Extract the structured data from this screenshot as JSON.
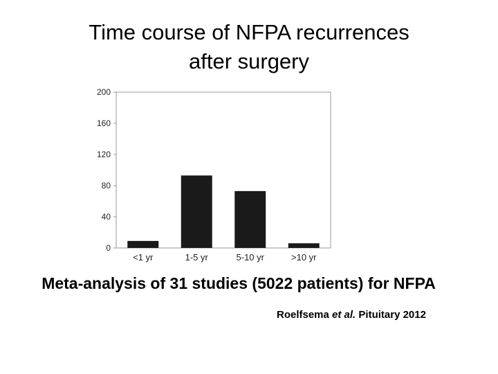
{
  "slide": {
    "title_line1": "Time course of NFPA recurrences",
    "title_line2": "after surgery",
    "subtitle": "Meta-analysis of 31 studies (5022 patients) for NFPA",
    "citation": {
      "author": "Roelfsema",
      "etal": "et al.",
      "journal": "Pituitary 2012"
    }
  },
  "chart_data": {
    "type": "bar",
    "categories": [
      "<1 yr",
      "1-5 yr",
      "5-10 yr",
      ">10 yr"
    ],
    "values": [
      9,
      93,
      73,
      6
    ],
    "ylim": [
      0,
      200
    ],
    "yticks": [
      0,
      40,
      80,
      120,
      160,
      200
    ],
    "grid": false,
    "bar_color": "#1a1a1a"
  }
}
